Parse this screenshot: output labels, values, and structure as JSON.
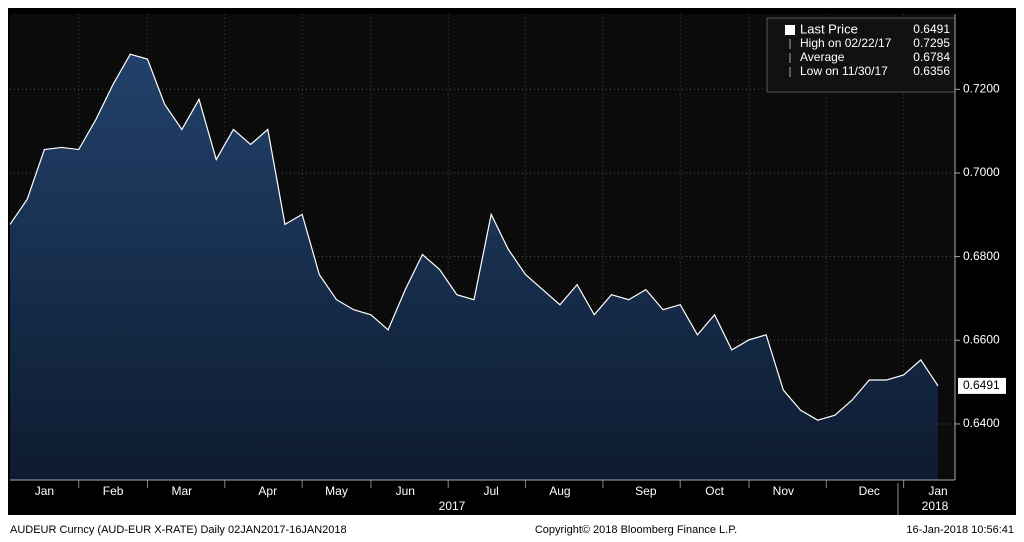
{
  "chart_data": {
    "type": "area",
    "categories": [
      null,
      null,
      "Jan",
      null,
      null,
      null,
      "Feb",
      null,
      null,
      null,
      "Mar",
      null,
      null,
      null,
      null,
      "Apr",
      null,
      null,
      null,
      "May",
      null,
      null,
      null,
      "Jun",
      null,
      null,
      null,
      null,
      "Jul",
      null,
      null,
      null,
      "Aug",
      null,
      null,
      null,
      null,
      "Sep",
      null,
      null,
      null,
      "Oct",
      null,
      null,
      null,
      "Nov",
      null,
      null,
      null,
      null,
      "Dec",
      null,
      null,
      null,
      "Jan"
    ],
    "series": [
      {
        "name": "Last Price",
        "color": "#ffffff",
        "fill": "#1b3456",
        "values": [
          0.6877,
          0.6937,
          0.7056,
          0.7061,
          0.7056,
          0.7128,
          0.7212,
          0.7284,
          0.7272,
          0.7164,
          0.7104,
          0.7176,
          0.7032,
          0.7104,
          0.7068,
          0.7104,
          0.6877,
          0.6901,
          0.6757,
          0.6697,
          0.6673,
          0.6661,
          0.6625,
          0.6721,
          0.6805,
          0.6769,
          0.6709,
          0.6697,
          0.6901,
          0.6817,
          0.6757,
          0.6721,
          0.6685,
          0.6733,
          0.6661,
          0.6709,
          0.6697,
          0.6721,
          0.6673,
          0.6685,
          0.6613,
          0.6661,
          0.6577,
          0.6601,
          0.6613,
          0.6481,
          0.6433,
          0.6409,
          0.6421,
          0.6457,
          0.6505,
          0.6505,
          0.6517,
          0.6553,
          0.6491
        ]
      }
    ],
    "ylim": [
      0.6266,
      0.738
    ],
    "yticks": [
      {
        "value": 0.64,
        "label": "0.6400"
      },
      {
        "value": 0.66,
        "label": "0.6600"
      },
      {
        "value": 0.68,
        "label": "0.6800"
      },
      {
        "value": 0.7,
        "label": "0.7000"
      },
      {
        "value": 0.72,
        "label": "0.7200"
      }
    ],
    "grid": true,
    "year_labels": [
      "2017",
      "2018"
    ],
    "legend": [
      {
        "label": "Last Price",
        "value": 0.6491
      },
      {
        "label": "High on 02/22/17",
        "value": 0.7295
      },
      {
        "label": "Average",
        "value": 0.6784
      },
      {
        "label": "Low on 11/30/17",
        "value": 0.6356
      }
    ],
    "footer": {
      "left": "AUDEUR Curncy (AUD-EUR X-RATE)  Daily 02JAN2017-16JAN2018",
      "center": "Copyright© 2018 Bloomberg Finance L.P.",
      "right": "16-Jan-2018 10:56:41"
    }
  }
}
